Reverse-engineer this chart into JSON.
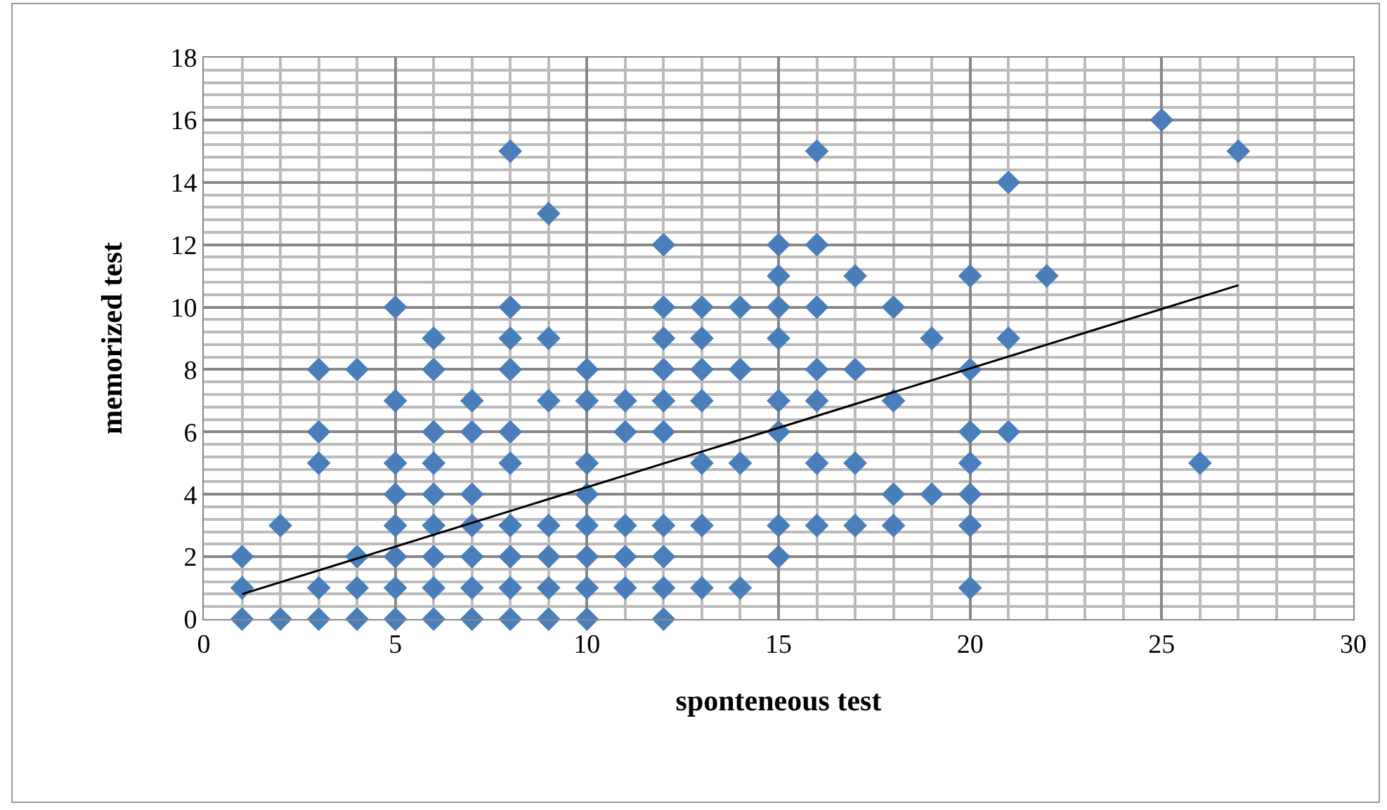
{
  "chart_data": {
    "type": "scatter",
    "xlabel": "sponteneous test",
    "ylabel": "memorized test",
    "xlim": [
      0,
      30
    ],
    "xticks": [
      0,
      5,
      10,
      15,
      20,
      25,
      30
    ],
    "ylim": [
      0,
      18
    ],
    "yticks": [
      0,
      2,
      4,
      6,
      8,
      10,
      12,
      14,
      16,
      18
    ],
    "grid": true,
    "marker": "diamond",
    "series": [
      {
        "color": "#4a7ebb",
        "x": [
          1,
          1,
          1,
          2,
          2,
          3,
          3,
          3,
          3,
          3,
          4,
          4,
          4,
          4,
          5,
          5,
          5,
          5,
          5,
          5,
          5,
          5,
          6,
          6,
          6,
          6,
          6,
          6,
          6,
          6,
          6,
          7,
          7,
          7,
          7,
          7,
          7,
          7,
          8,
          8,
          8,
          8,
          8,
          8,
          8,
          8,
          8,
          8,
          9,
          9,
          9,
          9,
          9,
          9,
          9,
          10,
          10,
          10,
          10,
          10,
          10,
          10,
          10,
          11,
          11,
          11,
          11,
          11,
          12,
          12,
          12,
          12,
          12,
          12,
          12,
          12,
          12,
          12,
          13,
          13,
          13,
          13,
          13,
          13,
          13,
          14,
          14,
          14,
          14,
          15,
          15,
          15,
          15,
          15,
          15,
          15,
          15,
          16,
          16,
          16,
          16,
          16,
          16,
          16,
          17,
          17,
          17,
          17,
          18,
          18,
          18,
          18,
          19,
          19,
          20,
          20,
          20,
          20,
          20,
          20,
          20,
          21,
          21,
          21,
          22,
          25,
          26,
          27
        ],
        "values": [
          0,
          1,
          2,
          0,
          3,
          0,
          1,
          5,
          6,
          8,
          0,
          1,
          2,
          8,
          0,
          1,
          2,
          3,
          4,
          5,
          7,
          10,
          0,
          1,
          2,
          3,
          4,
          5,
          6,
          8,
          9,
          0,
          1,
          2,
          3,
          4,
          6,
          7,
          0,
          1,
          2,
          3,
          5,
          6,
          8,
          9,
          10,
          15,
          0,
          1,
          2,
          3,
          7,
          9,
          13,
          0,
          1,
          2,
          3,
          4,
          5,
          7,
          8,
          1,
          2,
          3,
          6,
          7,
          0,
          1,
          2,
          3,
          6,
          7,
          8,
          9,
          10,
          12,
          1,
          3,
          5,
          7,
          8,
          9,
          10,
          1,
          5,
          8,
          10,
          2,
          3,
          6,
          7,
          9,
          10,
          11,
          12,
          3,
          5,
          7,
          8,
          10,
          12,
          15,
          3,
          5,
          8,
          11,
          3,
          4,
          7,
          10,
          4,
          9,
          1,
          3,
          4,
          5,
          6,
          8,
          11,
          6,
          9,
          14,
          11,
          16,
          5,
          15
        ]
      },
      {
        "type": "line",
        "color": "#000000",
        "marker": "none",
        "x": [
          1,
          27
        ],
        "values": [
          0.8,
          10.7
        ]
      }
    ]
  }
}
